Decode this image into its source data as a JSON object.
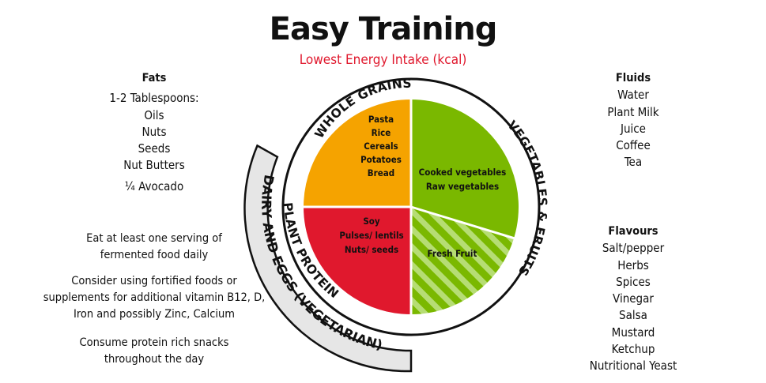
{
  "title": "Easy Training",
  "subtitle": "Lowest Energy Intake (kcal)",
  "fats": {
    "heading": "Fats",
    "lines": [
      "1-2 Tablespoons:",
      "Oils",
      "Nuts",
      "Seeds",
      "Nut Butters",
      "¼ Avocado"
    ]
  },
  "advice": [
    "Eat at least one serving of fermented food daily",
    "Consider using fortified foods or supplements for additional vitamin B12, D, Iron and possibly Zinc, Calcium",
    "Consume protein rich snacks throughout the day"
  ],
  "advice_lines": [
    [
      "Eat at least one serving of",
      "fermented food daily"
    ],
    [
      "Consider using fortified foods or",
      "supplements for additional vitamin B12, D,",
      "Iron and possibly Zinc, Calcium"
    ],
    [
      "Consume protein rich snacks",
      "throughout the day"
    ]
  ],
  "fluids": {
    "heading": "Fluids",
    "lines": [
      "Water",
      "Plant Milk",
      "Juice",
      "Coffee",
      "Tea"
    ]
  },
  "flavours": {
    "heading": "Flavours",
    "lines": [
      "Salt/pepper",
      "Herbs",
      "Spices",
      "Vinegar",
      "Salsa",
      "Mustard",
      "Ketchup",
      "Nutritional Yeast"
    ]
  },
  "plate": {
    "segments": [
      {
        "name": "Whole Grains",
        "label": "WHOLE GRAINS",
        "share": 0.25,
        "color": "#f5a300",
        "items": [
          "Pasta",
          "Rice",
          "Cereals",
          "Potatoes",
          "Bread"
        ]
      },
      {
        "name": "Vegetables & Fruits",
        "label": "VEGETABLES & FRUITS",
        "share": 0.5,
        "color": "#7ab800",
        "items": [
          "Cooked vegetables",
          "Raw vegetables"
        ],
        "hatched_item": "Fresh Fruit"
      },
      {
        "name": "Plant Protein",
        "label": "PLANT PROTEIN",
        "share": 0.25,
        "color": "#e0182d",
        "items": [
          "Soy",
          "Pulses/ lentils",
          "Nuts/ seeds"
        ]
      }
    ],
    "dairy_label": "DAIRY AND EGGS (VEGETARIAN)",
    "colors": {
      "dairy_band": "#e6e6e6",
      "hatch_stripe": "#b6dd74"
    }
  }
}
